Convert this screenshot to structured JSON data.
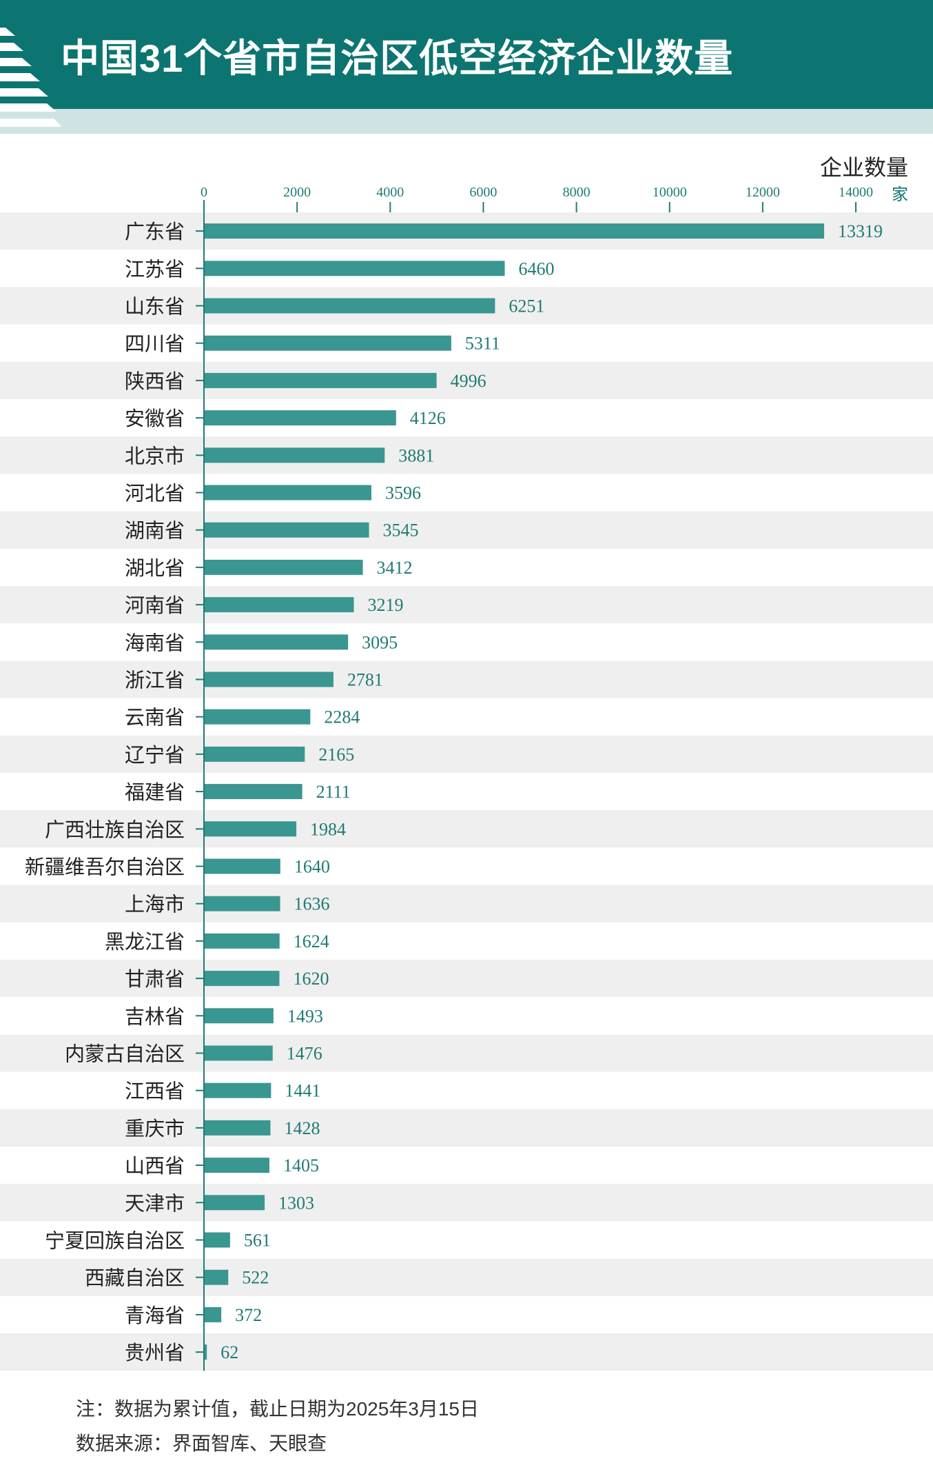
{
  "header": {
    "title": "中国31个省市自治区低空经济企业数量",
    "accent_color": "#0d7571",
    "band_color": "#cfe3e2"
  },
  "axis": {
    "title": "企业数量",
    "unit": "家"
  },
  "notes": {
    "line1": "注：数据为累计值，截止日期为2025年3月15日",
    "line2": "数据来源：界面智库、天眼查"
  },
  "chart_data": {
    "type": "bar",
    "orientation": "horizontal",
    "xlim": [
      0,
      14000
    ],
    "x_ticks": [
      "0",
      "2000",
      "4000",
      "6000",
      "8000",
      "10000",
      "12000",
      "14000"
    ],
    "bar_color": "#3a9690",
    "label_color": "#1f7a74",
    "row_shading": "alternating light gray",
    "categories": [
      "广东省",
      "江苏省",
      "山东省",
      "四川省",
      "陕西省",
      "安徽省",
      "北京市",
      "河北省",
      "湖南省",
      "湖北省",
      "河南省",
      "海南省",
      "浙江省",
      "云南省",
      "辽宁省",
      "福建省",
      "广西壮族自治区",
      "新疆维吾尔自治区",
      "上海市",
      "黑龙江省",
      "甘肃省",
      "吉林省",
      "内蒙古自治区",
      "江西省",
      "重庆市",
      "山西省",
      "天津市",
      "宁夏回族自治区",
      "西藏自治区",
      "青海省",
      "贵州省"
    ],
    "values": [
      13319,
      6460,
      6251,
      5311,
      4996,
      4126,
      3881,
      3596,
      3545,
      3412,
      3219,
      3095,
      2781,
      2284,
      2165,
      2111,
      1984,
      1640,
      1636,
      1624,
      1620,
      1493,
      1476,
      1441,
      1428,
      1405,
      1303,
      561,
      522,
      372,
      62
    ]
  }
}
